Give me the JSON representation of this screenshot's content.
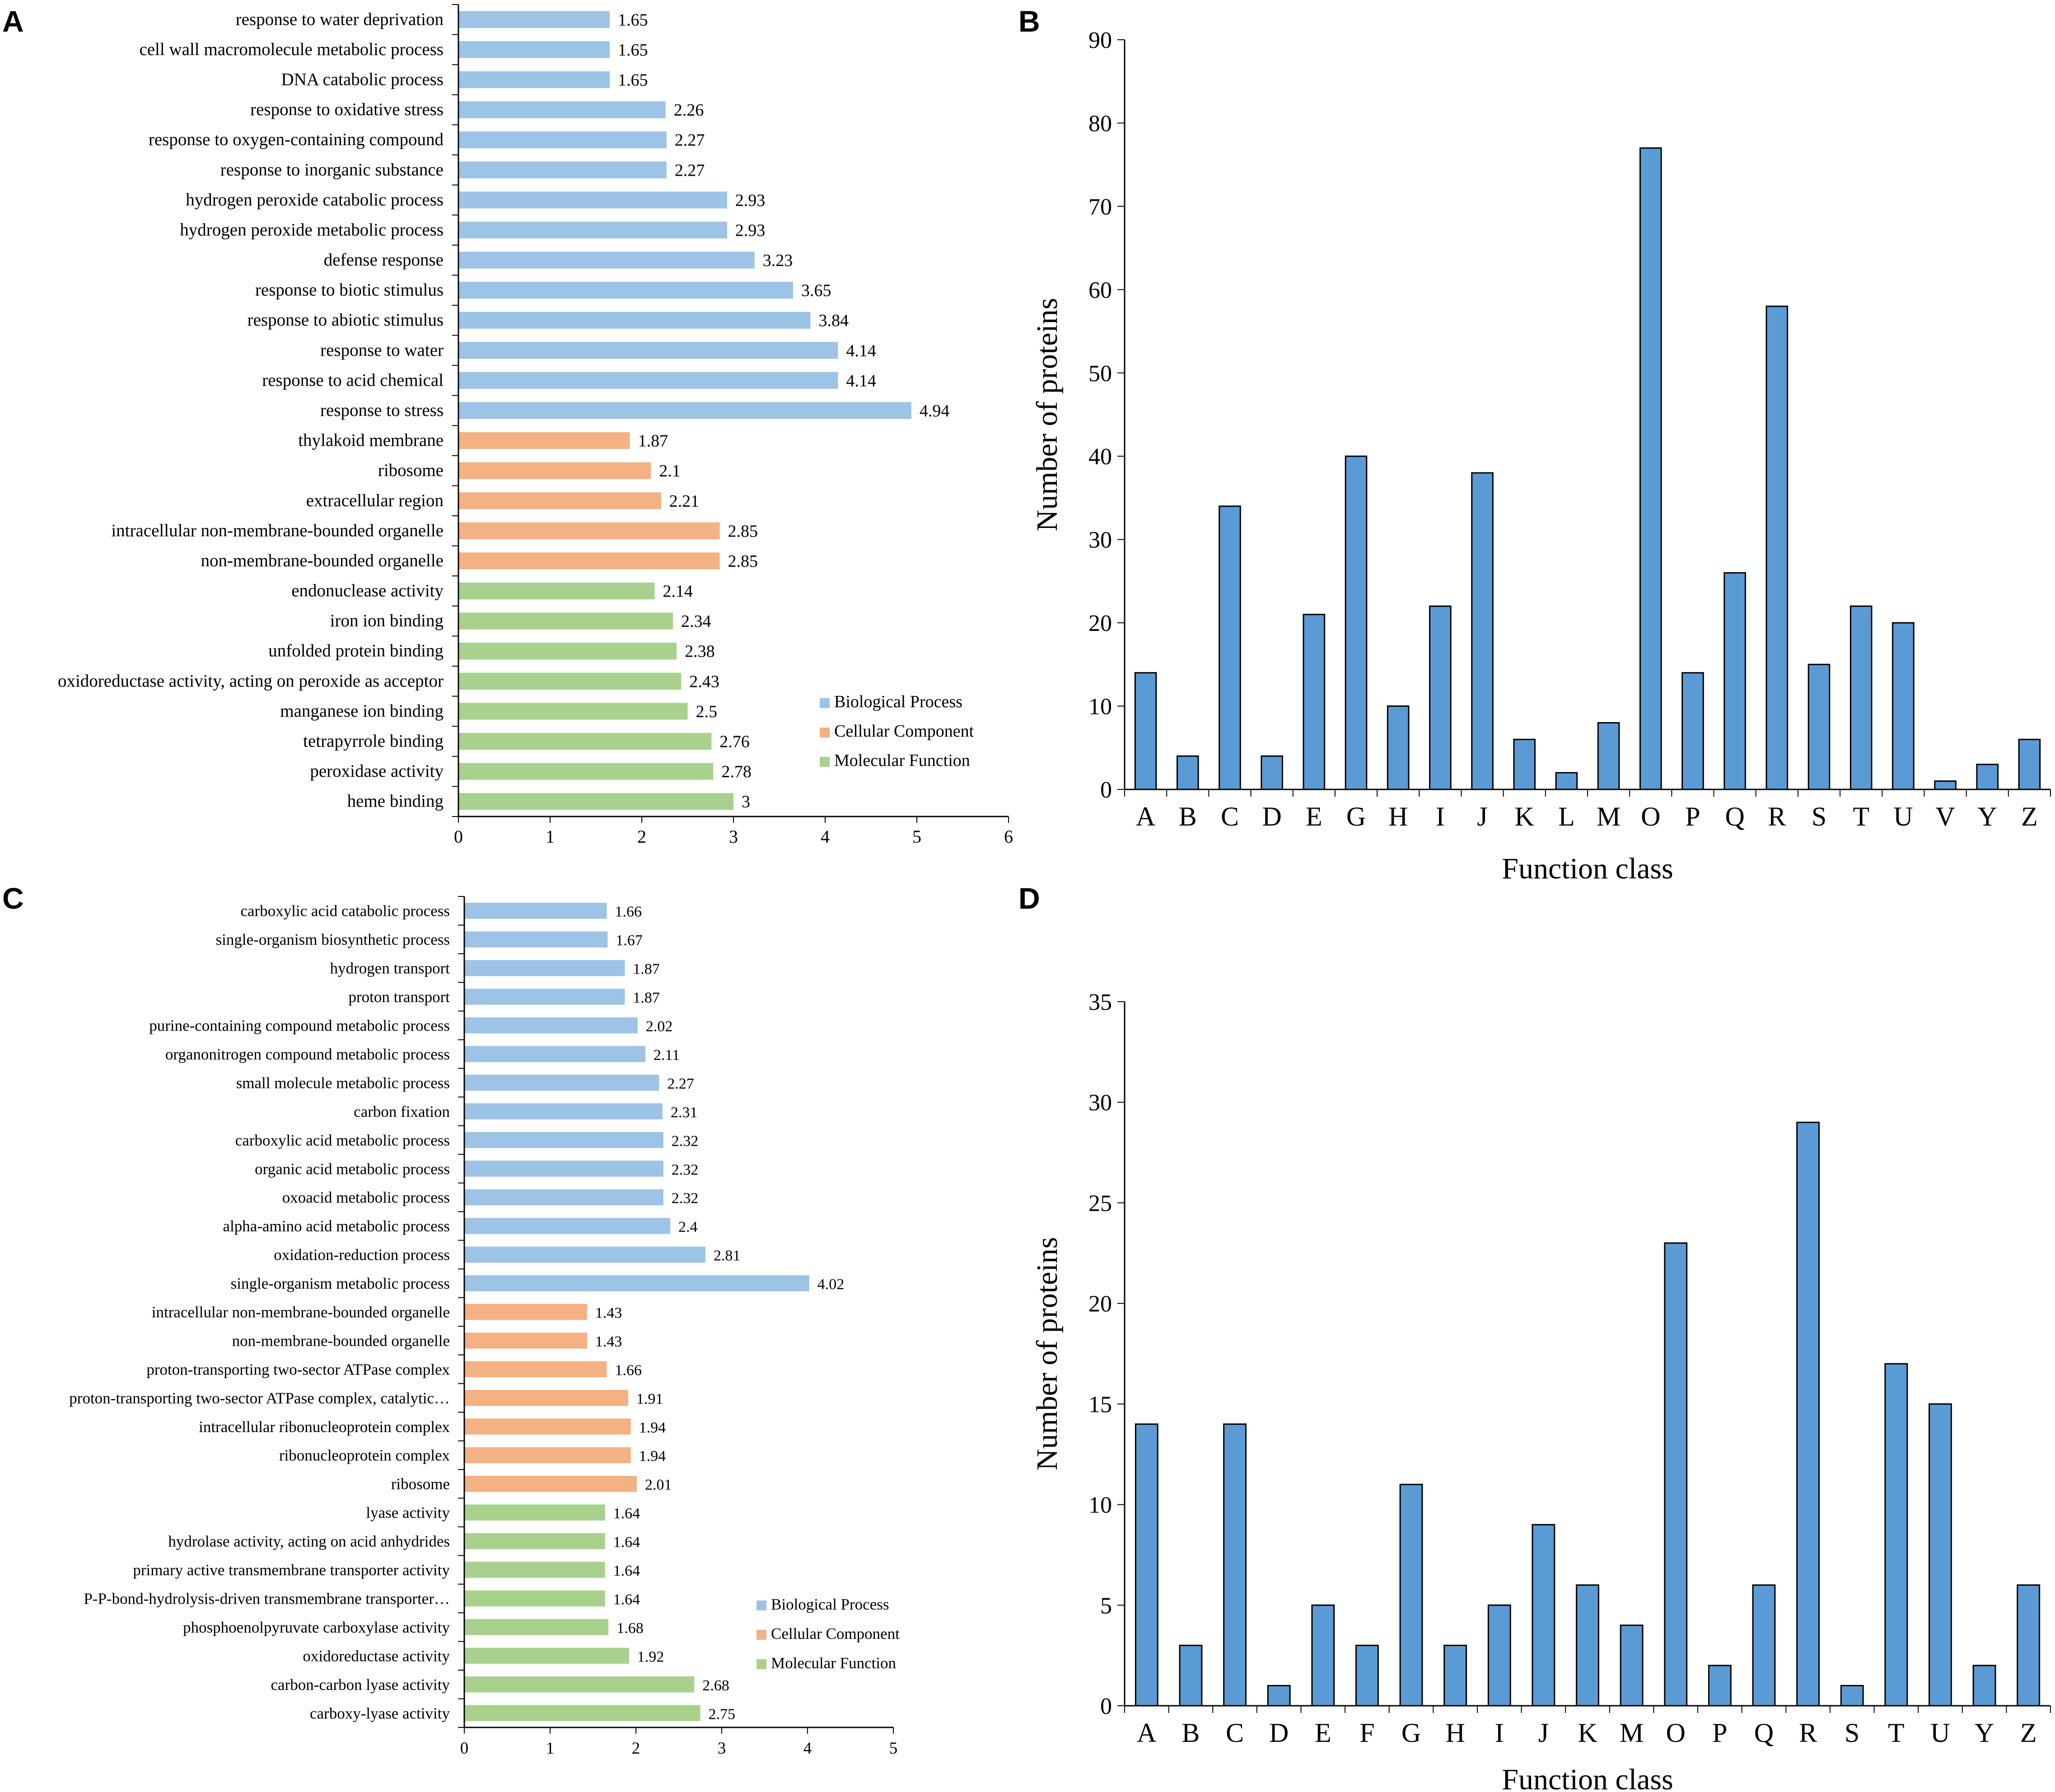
{
  "colors": {
    "biological_process": "#9dc3e6",
    "cellular_component": "#f4b183",
    "molecular_function": "#a9d18e",
    "column_bar": "#5b9bd5",
    "axis": "#000000"
  },
  "chart_data": [
    {
      "panel": "A",
      "type": "bar",
      "orientation": "horizontal",
      "categories": [
        "response to water deprivation",
        "cell wall macromolecule metabolic process",
        "DNA catabolic process",
        "response to oxidative stress",
        "response to oxygen-containing compound",
        "response to inorganic substance",
        "hydrogen peroxide catabolic process",
        "hydrogen peroxide metabolic process",
        "defense response",
        "response to biotic stimulus",
        "response to abiotic stimulus",
        "response to water",
        "response to acid chemical",
        "response to stress",
        "thylakoid membrane",
        "ribosome",
        "extracellular region",
        "intracellular non-membrane-bounded organelle",
        "non-membrane-bounded organelle",
        "endonuclease activity",
        "iron ion binding",
        "unfolded protein binding",
        "oxidoreductase activity, acting on peroxide as acceptor",
        "manganese ion binding",
        "tetrapyrrole binding",
        "peroxidase activity",
        "heme binding"
      ],
      "values": [
        1.65,
        1.65,
        1.65,
        2.26,
        2.27,
        2.27,
        2.93,
        2.93,
        3.23,
        3.65,
        3.84,
        4.14,
        4.14,
        4.94,
        1.87,
        2.1,
        2.21,
        2.85,
        2.85,
        2.14,
        2.34,
        2.38,
        2.43,
        2.5,
        2.76,
        2.78,
        3
      ],
      "value_labels": [
        "1.65",
        "1.65",
        "1.65",
        "2.26",
        "2.27",
        "2.27",
        "2.93",
        "2.93",
        "3.23",
        "3.65",
        "3.84",
        "4.14",
        "4.14",
        "4.94",
        "1.87",
        "2.1",
        "2.21",
        "2.85",
        "2.85",
        "2.14",
        "2.34",
        "2.38",
        "2.43",
        "2.5",
        "2.76",
        "2.78",
        "3"
      ],
      "groups": [
        "BP",
        "BP",
        "BP",
        "BP",
        "BP",
        "BP",
        "BP",
        "BP",
        "BP",
        "BP",
        "BP",
        "BP",
        "BP",
        "BP",
        "CC",
        "CC",
        "CC",
        "CC",
        "CC",
        "MF",
        "MF",
        "MF",
        "MF",
        "MF",
        "MF",
        "MF",
        "MF"
      ],
      "xlim": [
        0,
        6
      ],
      "x_ticks": [
        "0",
        "1",
        "2",
        "3",
        "4",
        "5",
        "6"
      ],
      "legend": [
        "Biological Process",
        "Cellular Component",
        "Molecular Function"
      ],
      "legend_placement": "bottom-right"
    },
    {
      "panel": "B",
      "type": "bar",
      "categories": [
        "A",
        "B",
        "C",
        "D",
        "E",
        "G",
        "H",
        "I",
        "J",
        "K",
        "L",
        "M",
        "O",
        "P",
        "Q",
        "R",
        "S",
        "T",
        "U",
        "V",
        "Y",
        "Z"
      ],
      "values": [
        14,
        4,
        34,
        4,
        21,
        40,
        10,
        22,
        38,
        6,
        2,
        8,
        77,
        14,
        26,
        58,
        15,
        22,
        20,
        1,
        3,
        6
      ],
      "xlabel": "Function class",
      "ylabel": "Number of proteins",
      "ylim": [
        0,
        90
      ],
      "y_ticks": [
        "0",
        "10",
        "20",
        "30",
        "40",
        "50",
        "60",
        "70",
        "80",
        "90"
      ]
    },
    {
      "panel": "C",
      "type": "bar",
      "orientation": "horizontal",
      "categories": [
        "carboxylic acid catabolic process",
        "single-organism biosynthetic process",
        "hydrogen transport",
        "proton transport",
        "purine-containing compound metabolic process",
        "organonitrogen compound metabolic process",
        "small molecule metabolic process",
        "carbon fixation",
        "carboxylic acid metabolic process",
        "organic acid metabolic process",
        "oxoacid metabolic process",
        "alpha-amino acid metabolic process",
        "oxidation-reduction process",
        "single-organism metabolic process",
        "intracellular non-membrane-bounded organelle",
        "non-membrane-bounded organelle",
        "proton-transporting two-sector ATPase complex",
        "proton-transporting two-sector ATPase complex, catalytic…",
        "intracellular ribonucleoprotein complex",
        "ribonucleoprotein complex",
        "ribosome",
        "lyase activity",
        "hydrolase activity, acting on acid anhydrides",
        "primary active transmembrane transporter activity",
        "P-P-bond-hydrolysis-driven transmembrane transporter…",
        "phosphoenolpyruvate carboxylase activity",
        "oxidoreductase activity",
        "carbon-carbon lyase activity",
        "carboxy-lyase activity"
      ],
      "values": [
        1.66,
        1.67,
        1.87,
        1.87,
        2.02,
        2.11,
        2.27,
        2.31,
        2.32,
        2.32,
        2.32,
        2.4,
        2.81,
        4.02,
        1.43,
        1.43,
        1.66,
        1.91,
        1.94,
        1.94,
        2.01,
        1.64,
        1.64,
        1.64,
        1.64,
        1.68,
        1.92,
        2.68,
        2.75
      ],
      "value_labels": [
        "1.66",
        "1.67",
        "1.87",
        "1.87",
        "2.02",
        "2.11",
        "2.27",
        "2.31",
        "2.32",
        "2.32",
        "2.32",
        "2.4",
        "2.81",
        "4.02",
        "1.43",
        "1.43",
        "1.66",
        "1.91",
        "1.94",
        "1.94",
        "2.01",
        "1.64",
        "1.64",
        "1.64",
        "1.64",
        "1.68",
        "1.92",
        "2.68",
        "2.75"
      ],
      "groups": [
        "BP",
        "BP",
        "BP",
        "BP",
        "BP",
        "BP",
        "BP",
        "BP",
        "BP",
        "BP",
        "BP",
        "BP",
        "BP",
        "BP",
        "CC",
        "CC",
        "CC",
        "CC",
        "CC",
        "CC",
        "CC",
        "MF",
        "MF",
        "MF",
        "MF",
        "MF",
        "MF",
        "MF",
        "MF"
      ],
      "xlim": [
        0,
        5
      ],
      "x_ticks": [
        "0",
        "1",
        "2",
        "3",
        "4",
        "5"
      ],
      "legend": [
        "Biological Process",
        "Cellular Component",
        "Molecular Function"
      ],
      "legend_placement": "bottom-right"
    },
    {
      "panel": "D",
      "type": "bar",
      "categories": [
        "A",
        "B",
        "C",
        "D",
        "E",
        "F",
        "G",
        "H",
        "I",
        "J",
        "K",
        "M",
        "O",
        "P",
        "Q",
        "R",
        "S",
        "T",
        "U",
        "Y",
        "Z"
      ],
      "values": [
        14,
        3,
        14,
        1,
        5,
        3,
        11,
        3,
        5,
        9,
        6,
        4,
        23,
        2,
        6,
        29,
        1,
        17,
        15,
        2,
        6
      ],
      "xlabel": "Function class",
      "ylabel": "Number of proteins",
      "ylim": [
        0,
        35
      ],
      "y_ticks": [
        "0",
        "5",
        "10",
        "15",
        "20",
        "25",
        "30",
        "35"
      ]
    }
  ]
}
